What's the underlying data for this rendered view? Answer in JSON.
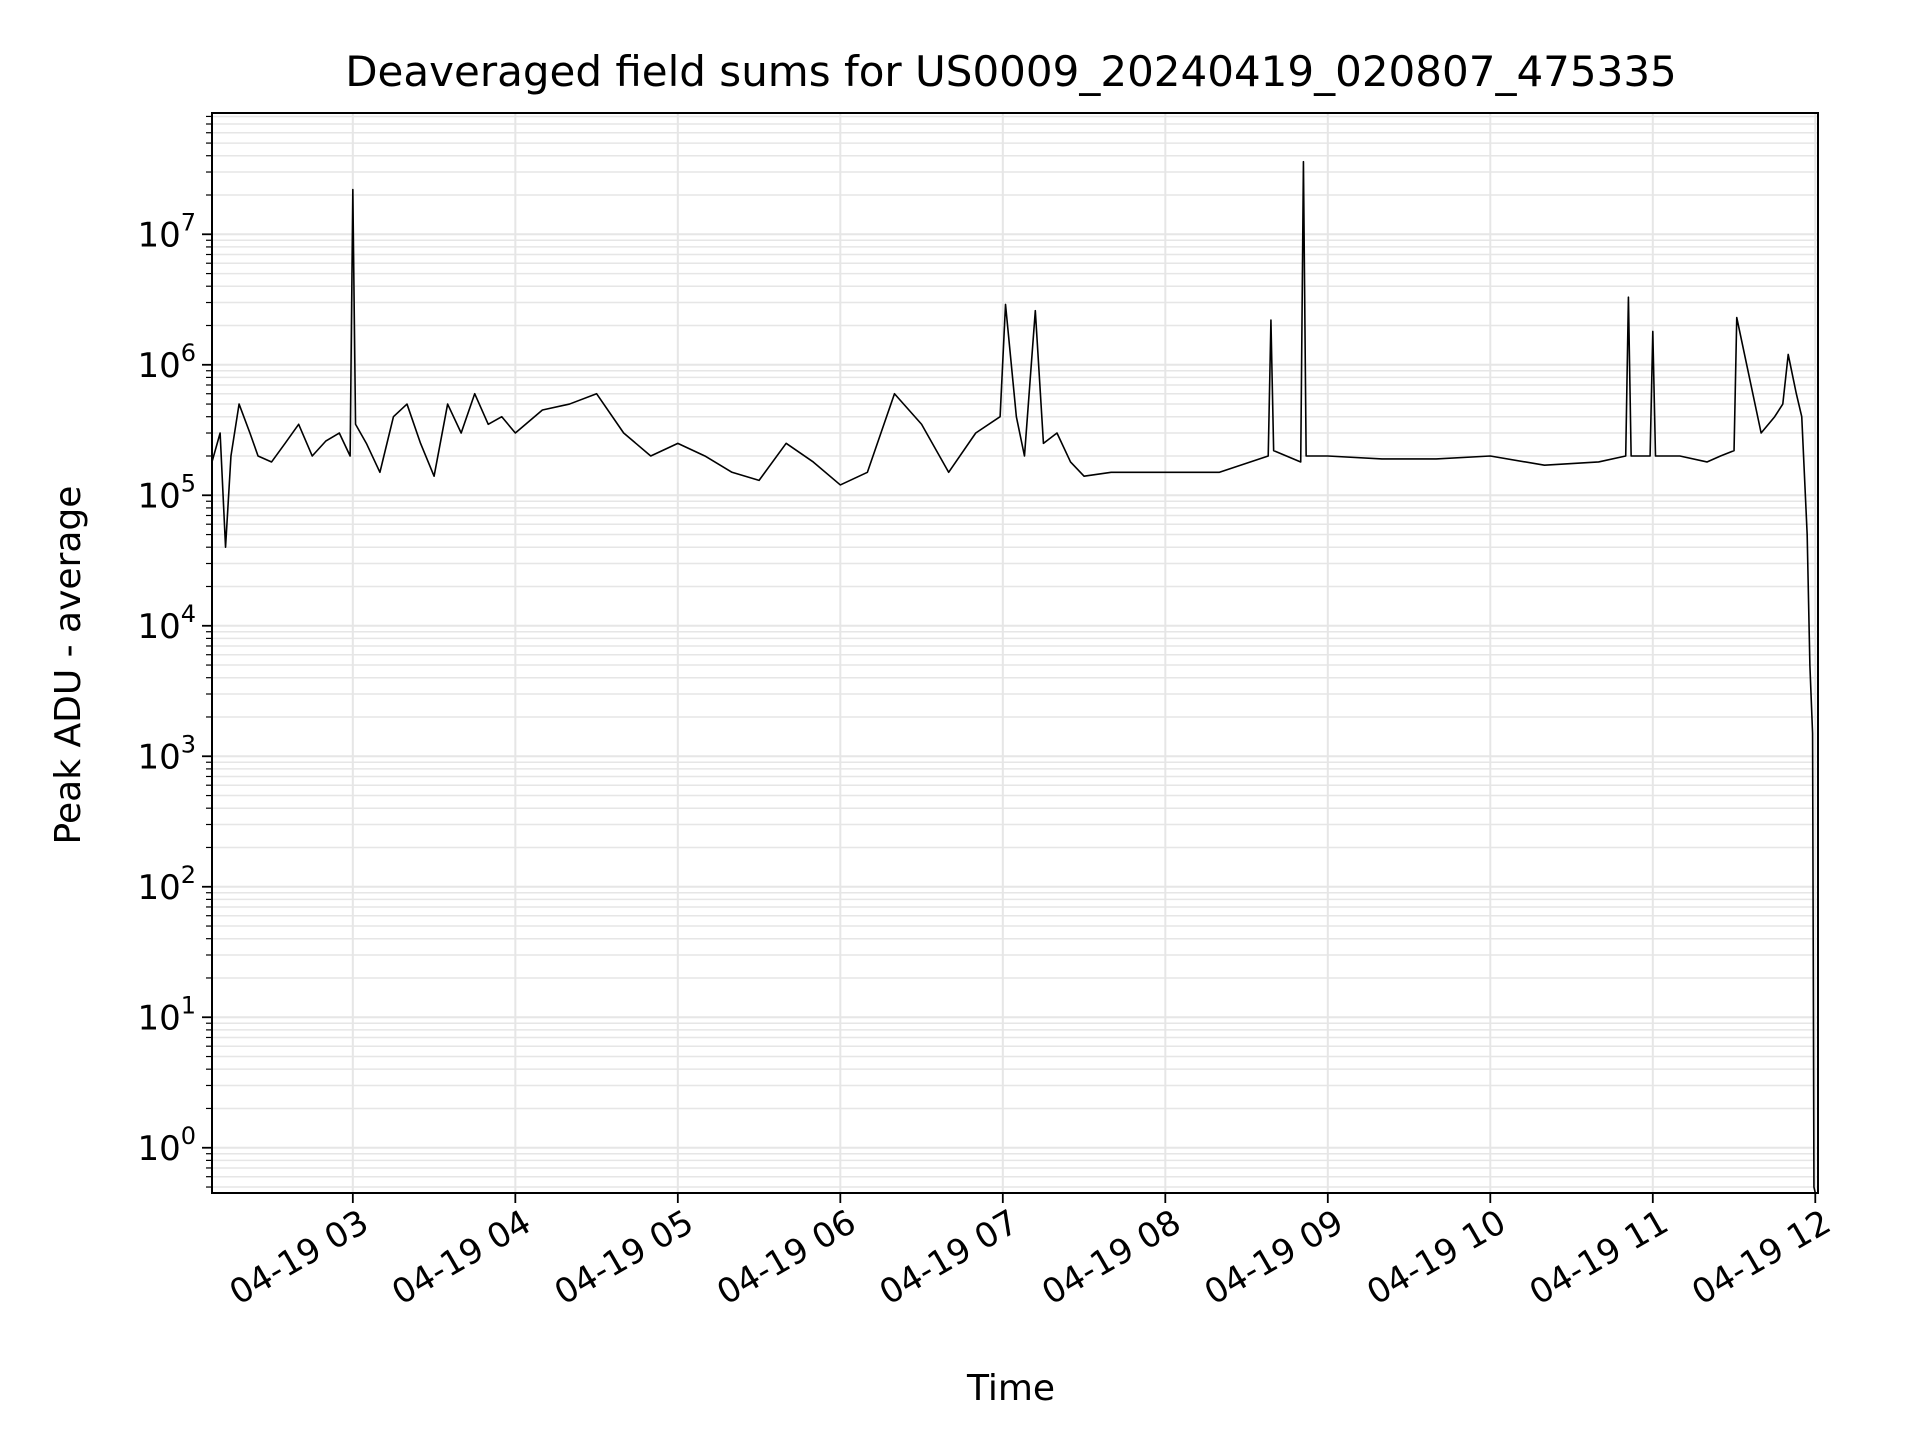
{
  "chart_data": {
    "type": "line",
    "title": "Deaveraged field sums for US0009_20240419_020807_475335",
    "xlabel": "Time",
    "ylabel": "Peak ADU - average",
    "yscale": "log",
    "grid": true,
    "legend": "none",
    "xlim": [
      "04-19 02:08",
      "04-19 12:01"
    ],
    "ylim": [
      0.45,
      85000000
    ],
    "x_ticks": [
      {
        "label": "04-19 03",
        "value": "04-19 03:00"
      },
      {
        "label": "04-19 04",
        "value": "04-19 04:00"
      },
      {
        "label": "04-19 05",
        "value": "04-19 05:00"
      },
      {
        "label": "04-19 06",
        "value": "04-19 06:00"
      },
      {
        "label": "04-19 07",
        "value": "04-19 07:00"
      },
      {
        "label": "04-19 08",
        "value": "04-19 08:00"
      },
      {
        "label": "04-19 09",
        "value": "04-19 09:00"
      },
      {
        "label": "04-19 10",
        "value": "04-19 10:00"
      },
      {
        "label": "04-19 11",
        "value": "04-19 11:00"
      },
      {
        "label": "04-19 12",
        "value": "04-19 12:00"
      }
    ],
    "y_ticks": [
      {
        "base": "10",
        "exp": "0",
        "value": 1
      },
      {
        "base": "10",
        "exp": "1",
        "value": 10
      },
      {
        "base": "10",
        "exp": "2",
        "value": 100
      },
      {
        "base": "10",
        "exp": "3",
        "value": 1000
      },
      {
        "base": "10",
        "exp": "4",
        "value": 10000
      },
      {
        "base": "10",
        "exp": "5",
        "value": 100000
      },
      {
        "base": "10",
        "exp": "6",
        "value": 1000000
      },
      {
        "base": "10",
        "exp": "7",
        "value": 10000000
      }
    ],
    "colors": {
      "line": "#000000",
      "grid": "#e6e6e6",
      "axes": "#000000"
    },
    "series": [
      {
        "x": [
          "04-19 02:08",
          "04-19 02:11",
          "04-19 02:13",
          "04-19 02:15",
          "04-19 02:18",
          "04-19 02:22",
          "04-19 02:25",
          "04-19 02:30",
          "04-19 02:35",
          "04-19 02:40",
          "04-19 02:45",
          "04-19 02:50",
          "04-19 02:55",
          "04-19 02:59",
          "04-19 03:00",
          "04-19 03:01",
          "04-19 03:05",
          "04-19 03:10",
          "04-19 03:15",
          "04-19 03:20",
          "04-19 03:25",
          "04-19 03:30",
          "04-19 03:35",
          "04-19 03:40",
          "04-19 03:45",
          "04-19 03:50",
          "04-19 03:55",
          "04-19 04:00",
          "04-19 04:10",
          "04-19 04:20",
          "04-19 04:30",
          "04-19 04:40",
          "04-19 04:50",
          "04-19 05:00",
          "04-19 05:10",
          "04-19 05:20",
          "04-19 05:30",
          "04-19 05:40",
          "04-19 05:50",
          "04-19 06:00",
          "04-19 06:10",
          "04-19 06:20",
          "04-19 06:30",
          "04-19 06:40",
          "04-19 06:50",
          "04-19 06:59",
          "04-19 07:01",
          "04-19 07:05",
          "04-19 07:08",
          "04-19 07:12",
          "04-19 07:15",
          "04-19 07:20",
          "04-19 07:25",
          "04-19 07:30",
          "04-19 07:40",
          "04-19 08:00",
          "04-19 08:20",
          "04-19 08:38",
          "04-19 08:39",
          "04-19 08:40",
          "04-19 08:50",
          "04-19 08:51",
          "04-19 08:52",
          "04-19 09:00",
          "04-19 09:20",
          "04-19 09:40",
          "04-19 10:00",
          "04-19 10:20",
          "04-19 10:40",
          "04-19 10:50",
          "04-19 10:51",
          "04-19 10:52",
          "04-19 10:59",
          "04-19 11:00",
          "04-19 11:01",
          "04-19 11:10",
          "04-19 11:20",
          "04-19 11:25",
          "04-19 11:30",
          "04-19 11:31",
          "04-19 11:40",
          "04-19 11:45",
          "04-19 11:48",
          "04-19 11:50",
          "04-19 11:53",
          "04-19 11:55",
          "04-19 11:57",
          "04-19 11:58",
          "04-19 11:59",
          "04-19 11:59:30",
          "04-19 12:00"
        ],
        "y": [
          180000,
          300000,
          40000,
          200000,
          500000,
          300000,
          200000,
          180000,
          250000,
          350000,
          200000,
          260000,
          300000,
          200000,
          22000000,
          350000,
          250000,
          150000,
          400000,
          500000,
          250000,
          140000,
          500000,
          300000,
          600000,
          350000,
          400000,
          300000,
          450000,
          500000,
          600000,
          300000,
          200000,
          250000,
          200000,
          150000,
          130000,
          250000,
          180000,
          120000,
          150000,
          600000,
          350000,
          150000,
          300000,
          400000,
          2900000,
          400000,
          200000,
          2600000,
          250000,
          300000,
          180000,
          140000,
          150000,
          150000,
          150000,
          200000,
          2200000,
          220000,
          180000,
          36000000,
          200000,
          200000,
          190000,
          190000,
          200000,
          170000,
          180000,
          200000,
          3300000,
          200000,
          200000,
          1800000,
          200000,
          200000,
          180000,
          200000,
          220000,
          2300000,
          300000,
          400000,
          500000,
          1200000,
          600000,
          400000,
          50000,
          5000,
          1500,
          0.5,
          0.45
        ]
      }
    ]
  }
}
